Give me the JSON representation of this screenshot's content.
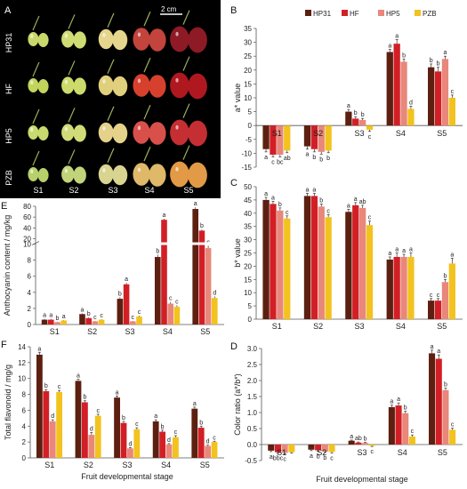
{
  "photo": {
    "panel_label": "A",
    "scale_bar": "2 cm",
    "rows": [
      "HP31",
      "HF",
      "HP5",
      "PZB"
    ],
    "stages": [
      "S1",
      "S2",
      "S3",
      "S4",
      "S5"
    ],
    "colors": {
      "HP31": [
        "#c9d86a",
        "#cfdc74",
        "#e6d58c",
        "#c2443c",
        "#8e1a25"
      ],
      "HF": [
        "#c3d45c",
        "#cddb6c",
        "#e0cf7c",
        "#d8402e",
        "#b01820"
      ],
      "HP5": [
        "#c9da6e",
        "#d1dc78",
        "#e4d28a",
        "#d9504a",
        "#c52e32"
      ],
      "PZB": [
        "#b8d06c",
        "#c1d47a",
        "#d9d490",
        "#e0b86a",
        "#e29a46"
      ]
    }
  },
  "legend": [
    "HP31",
    "HF",
    "HP5",
    "PZB"
  ],
  "colors": {
    "HP31": "#5c1f10",
    "HF": "#d21f26",
    "HP5": "#e8877a",
    "PZB": "#f2c21e"
  },
  "chart_data": [
    {
      "panel": "B",
      "type": "bar",
      "ylabel": "a* value",
      "xlabel": "",
      "categories": [
        "S1",
        "S2",
        "S3",
        "S4",
        "S5"
      ],
      "ylim": [
        -15,
        35
      ],
      "yticks": [
        -15,
        -10,
        -5,
        0,
        5,
        10,
        15,
        20,
        25,
        30,
        35
      ],
      "legend_position": "top-right",
      "cat_labels_inside": true,
      "series": [
        {
          "name": "HP31",
          "values": [
            -8.5,
            -7.5,
            5.0,
            26.5,
            21.0
          ],
          "errors": [
            1.0,
            1.0,
            0.8,
            1.0,
            1.2
          ]
        },
        {
          "name": "HF",
          "values": [
            -10.5,
            -8.5,
            2.5,
            29.5,
            19.5
          ],
          "errors": [
            0.8,
            1.0,
            0.7,
            1.5,
            1.5
          ]
        },
        {
          "name": "HP5",
          "values": [
            -10.5,
            -9.5,
            2.0,
            23.0,
            24.0
          ],
          "errors": [
            0.8,
            0.8,
            0.6,
            1.0,
            1.0
          ]
        },
        {
          "name": "PZB",
          "values": [
            -9.0,
            -9.0,
            -1.5,
            6.0,
            10.0
          ],
          "errors": [
            0.8,
            0.8,
            0.6,
            1.0,
            1.0
          ]
        }
      ],
      "letters": [
        [
          "a",
          "c",
          "bc",
          "ab"
        ],
        [
          "a",
          "b",
          "b",
          "b"
        ],
        [
          "a",
          "b",
          "b",
          "c"
        ],
        [
          "a",
          "a",
          "b",
          "d"
        ],
        [
          "b",
          "b",
          "a",
          "c"
        ]
      ]
    },
    {
      "panel": "C",
      "type": "bar",
      "ylabel": "b* value",
      "xlabel": "",
      "categories": [
        "S1",
        "S2",
        "S3",
        "S4",
        "S5"
      ],
      "ylim": [
        0,
        50
      ],
      "yticks": [
        0,
        5,
        10,
        15,
        20,
        25,
        30,
        35,
        40,
        45,
        50
      ],
      "cat_labels_inside": false,
      "series": [
        {
          "name": "HP31",
          "values": [
            45.0,
            46.5,
            40.5,
            22.5,
            7.0
          ],
          "errors": [
            1.0,
            1.0,
            1.0,
            1.0,
            0.8
          ]
        },
        {
          "name": "HF",
          "values": [
            43.5,
            46.5,
            43.0,
            23.5,
            7.0
          ],
          "errors": [
            1.0,
            1.0,
            1.0,
            1.5,
            0.8
          ]
        },
        {
          "name": "HP5",
          "values": [
            41.0,
            42.5,
            42.0,
            23.5,
            14.0
          ],
          "errors": [
            1.0,
            1.0,
            1.0,
            1.0,
            1.0
          ]
        },
        {
          "name": "PZB",
          "values": [
            38.0,
            38.5,
            35.5,
            23.5,
            21.0
          ],
          "errors": [
            1.0,
            1.0,
            1.5,
            1.5,
            2.0
          ]
        }
      ],
      "letters": [
        [
          "a",
          "a",
          "b",
          "c"
        ],
        [
          "a",
          "a",
          "b",
          "c"
        ],
        [
          "a",
          "a",
          "ab",
          "c"
        ],
        [
          "a",
          "a",
          "a",
          "a"
        ],
        [
          "c",
          "c",
          "b",
          "a"
        ]
      ]
    },
    {
      "panel": "D",
      "type": "bar",
      "ylabel": "Color ratio (a*/b*)",
      "xlabel": "Fruit developmental stage",
      "categories": [
        "S1",
        "S2",
        "S3",
        "S4",
        "S5"
      ],
      "ylim": [
        -0.5,
        3.0
      ],
      "yticks": [
        -0.5,
        0.0,
        0.5,
        1.0,
        1.5,
        2.0,
        2.5,
        3.0
      ],
      "tick_format": "fixed1",
      "cat_labels_inside": true,
      "series": [
        {
          "name": "HP31",
          "values": [
            -0.19,
            -0.16,
            0.12,
            1.17,
            2.85
          ],
          "errors": [
            0.03,
            0.03,
            0.02,
            0.06,
            0.1
          ]
        },
        {
          "name": "HF",
          "values": [
            -0.24,
            -0.18,
            0.06,
            1.22,
            2.68
          ],
          "errors": [
            0.03,
            0.03,
            0.02,
            0.08,
            0.12
          ]
        },
        {
          "name": "HP5",
          "values": [
            -0.26,
            -0.22,
            0.05,
            0.98,
            1.7
          ],
          "errors": [
            0.03,
            0.03,
            0.02,
            0.06,
            0.06
          ]
        },
        {
          "name": "PZB",
          "values": [
            -0.24,
            -0.23,
            -0.04,
            0.25,
            0.46
          ],
          "errors": [
            0.03,
            0.03,
            0.02,
            0.05,
            0.05
          ]
        }
      ],
      "letters": [
        [
          "a",
          "bbc",
          "c",
          ""
        ],
        [
          "a",
          "b",
          "b",
          "c"
        ],
        [
          "a",
          "ab",
          "b",
          "c"
        ],
        [
          "a",
          "a",
          "b",
          "c"
        ],
        [
          "a",
          "a",
          "b",
          "c"
        ]
      ]
    },
    {
      "panel": "E",
      "type": "bar",
      "ylabel": "Anthocyanin content / mg/kg",
      "xlabel": "",
      "categories": [
        "S1",
        "S2",
        "S3",
        "S4",
        "S5"
      ],
      "axis_break": true,
      "lower_ticks": [
        0,
        2,
        4,
        6,
        8,
        10
      ],
      "upper_ticks": [
        20,
        40,
        60,
        80
      ],
      "cat_labels_inside": false,
      "series": [
        {
          "name": "HP31",
          "values": [
            0.6,
            1.3,
            3.2,
            8.4,
            75.0
          ],
          "errors": [
            0.1,
            0.1,
            0.2,
            0.3,
            3.0
          ]
        },
        {
          "name": "HF",
          "values": [
            0.6,
            0.8,
            5.0,
            55.0,
            35.0
          ],
          "errors": [
            0.1,
            0.1,
            0.2,
            2.0,
            2.0
          ]
        },
        {
          "name": "HP5",
          "values": [
            0.3,
            0.4,
            0.4,
            2.6,
            9.5
          ],
          "errors": [
            0.05,
            0.05,
            0.05,
            0.2,
            0.3
          ]
        },
        {
          "name": "PZB",
          "values": [
            0.5,
            0.6,
            1.0,
            2.2,
            3.3
          ],
          "errors": [
            0.05,
            0.05,
            0.1,
            0.2,
            0.2
          ]
        }
      ],
      "letters": [
        [
          "a",
          "a",
          "b",
          "a"
        ],
        [
          "a",
          "b",
          "c",
          "c"
        ],
        [
          "b",
          "a",
          "c",
          "c"
        ],
        [
          "b",
          "a",
          "c",
          "c"
        ],
        [
          "a",
          "b",
          "c",
          "d"
        ]
      ]
    },
    {
      "panel": "F",
      "type": "bar",
      "ylabel": "Total flavonoid / mg/g",
      "xlabel": "Fruit developmental stage",
      "categories": [
        "S1",
        "S2",
        "S3",
        "S4",
        "S5"
      ],
      "ylim": [
        0,
        14
      ],
      "yticks": [
        0,
        2,
        4,
        6,
        8,
        10,
        12,
        14
      ],
      "cat_labels_inside": false,
      "series": [
        {
          "name": "HP31",
          "values": [
            13.0,
            9.7,
            7.6,
            4.6,
            6.2
          ],
          "errors": [
            0.3,
            0.2,
            0.2,
            0.2,
            0.2
          ]
        },
        {
          "name": "HF",
          "values": [
            8.4,
            7.0,
            4.4,
            3.3,
            3.8
          ],
          "errors": [
            0.2,
            0.2,
            0.2,
            0.2,
            0.2
          ]
        },
        {
          "name": "HP5",
          "values": [
            4.6,
            2.9,
            1.2,
            1.7,
            1.5
          ],
          "errors": [
            0.2,
            0.3,
            0.1,
            0.1,
            0.1
          ]
        },
        {
          "name": "PZB",
          "values": [
            8.3,
            5.3,
            3.6,
            2.6,
            2.0
          ],
          "errors": [
            0.2,
            0.2,
            0.2,
            0.2,
            0.1
          ]
        }
      ],
      "letters": [
        [
          "a",
          "b",
          "d",
          "c"
        ],
        [
          "a",
          "b",
          "d",
          "c"
        ],
        [
          "a",
          "b",
          "d",
          "c"
        ],
        [
          "a",
          "b",
          "d",
          "c"
        ],
        [
          "a",
          "b",
          "d",
          "c"
        ]
      ]
    }
  ]
}
